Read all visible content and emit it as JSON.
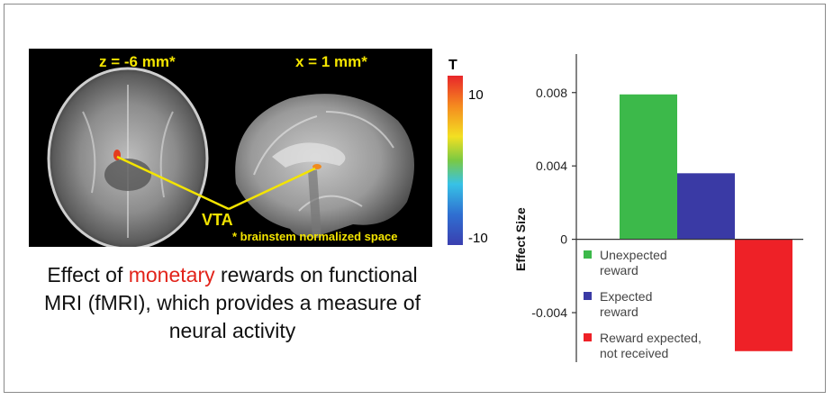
{
  "mri_panel": {
    "axial_label": "z = -6 mm*",
    "sagittal_label": "x = 1 mm*",
    "vta_label": "VTA",
    "footnote": "* brainstem normalized space"
  },
  "colorbar": {
    "title": "T",
    "max_label": "10",
    "min_label": "-10"
  },
  "caption": {
    "before": "Effect of ",
    "highlight": "monetary",
    "after": " rewards on functional MRI (fMRI), which provides a measure of neural activity"
  },
  "colors": {
    "unexpected": "#3cb94a",
    "expected": "#3a3aa5",
    "not_received": "#ee2127",
    "highlight": "#e2231a"
  },
  "chart_data": {
    "type": "bar",
    "ylabel": "Effect Size",
    "xlabel": "",
    "ylim": [
      -0.0067,
      0.0101
    ],
    "yticks": [
      -0.004,
      0,
      0.004,
      0.008
    ],
    "ytick_labels": [
      "-0.004",
      "0",
      "0.004",
      "0.008"
    ],
    "categories": [
      "Unexpected reward",
      "Expected reward",
      "Reward expected, not received"
    ],
    "legend": [
      {
        "line1": "Unexpected",
        "line2": "reward"
      },
      {
        "line1": "Expected",
        "line2": "reward"
      },
      {
        "line1": "Reward expected,",
        "line2": "not received"
      }
    ],
    "values": [
      0.0079,
      0.0036,
      -0.0061
    ],
    "legend_position": "bottom-left"
  }
}
